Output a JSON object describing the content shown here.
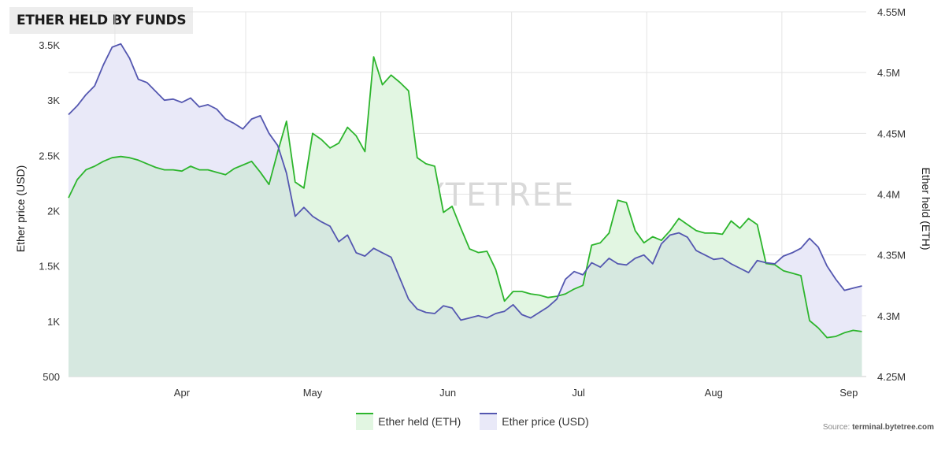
{
  "title": "ETHER HELD BY FUNDS",
  "watermark": "BYTETREE",
  "source": {
    "prefix": "Source: ",
    "site": "terminal.bytetree.com"
  },
  "colors": {
    "held_line": "#2db52d",
    "held_fill": "#e2f6e2",
    "price_line": "#5457b0",
    "price_fill": "#e9e9f8",
    "overlap_fill": "#d6e8e0",
    "grid": "#e4e4e4"
  },
  "chart_data": {
    "type": "line",
    "title": "ETHER HELD BY FUNDS",
    "x": [
      "2022-03-06",
      "2022-03-08",
      "2022-03-10",
      "2022-03-12",
      "2022-03-14",
      "2022-03-16",
      "2022-03-18",
      "2022-03-20",
      "2022-03-22",
      "2022-03-24",
      "2022-03-26",
      "2022-03-28",
      "2022-03-30",
      "2022-04-01",
      "2022-04-03",
      "2022-04-05",
      "2022-04-07",
      "2022-04-09",
      "2022-04-11",
      "2022-04-13",
      "2022-04-15",
      "2022-04-17",
      "2022-04-19",
      "2022-04-21",
      "2022-04-23",
      "2022-04-25",
      "2022-04-27",
      "2022-04-29",
      "2022-05-01",
      "2022-05-03",
      "2022-05-05",
      "2022-05-07",
      "2022-05-09",
      "2022-05-11",
      "2022-05-13",
      "2022-05-15",
      "2022-05-17",
      "2022-05-19",
      "2022-05-21",
      "2022-05-23",
      "2022-05-25",
      "2022-05-27",
      "2022-05-29",
      "2022-05-31",
      "2022-06-02",
      "2022-06-04",
      "2022-06-06",
      "2022-06-08",
      "2022-06-10",
      "2022-06-12",
      "2022-06-14",
      "2022-06-16",
      "2022-06-18",
      "2022-06-20",
      "2022-06-22",
      "2022-06-24",
      "2022-06-26",
      "2022-06-28",
      "2022-06-30",
      "2022-07-02",
      "2022-07-04",
      "2022-07-06",
      "2022-07-08",
      "2022-07-10",
      "2022-07-12",
      "2022-07-14",
      "2022-07-16",
      "2022-07-18",
      "2022-07-20",
      "2022-07-22",
      "2022-07-24",
      "2022-07-26",
      "2022-07-28",
      "2022-07-30",
      "2022-08-01",
      "2022-08-03",
      "2022-08-05",
      "2022-08-07",
      "2022-08-09",
      "2022-08-11",
      "2022-08-13",
      "2022-08-15",
      "2022-08-17",
      "2022-08-19",
      "2022-08-21",
      "2022-08-23",
      "2022-08-25",
      "2022-08-27",
      "2022-08-29",
      "2022-08-31",
      "2022-09-02",
      "2022-09-04"
    ],
    "xticks": [
      "Apr",
      "May",
      "Jun",
      "Jul",
      "Aug",
      "Sep"
    ],
    "series": [
      {
        "name": "Ether held (ETH)",
        "axis": "right",
        "values": [
          4397000,
          4412000,
          4420000,
          4423000,
          4427000,
          4430000,
          4431000,
          4430000,
          4428000,
          4425000,
          4422000,
          4420000,
          4420000,
          4419000,
          4423000,
          4420000,
          4420000,
          4418000,
          4416000,
          4421000,
          4424000,
          4427000,
          4418000,
          4408000,
          4435000,
          4460000,
          4410000,
          4405000,
          4450000,
          4445000,
          4438000,
          4442000,
          4455000,
          4448000,
          4435000,
          4513000,
          4490000,
          4498000,
          4492000,
          4485000,
          4430000,
          4425000,
          4423000,
          4385000,
          4390000,
          4372000,
          4355000,
          4352000,
          4353000,
          4338000,
          4312000,
          4320000,
          4320000,
          4318000,
          4317000,
          4315000,
          4316000,
          4318000,
          4322000,
          4325000,
          4358000,
          4360000,
          4368000,
          4395000,
          4393000,
          4370000,
          4360000,
          4365000,
          4362000,
          4370000,
          4380000,
          4375000,
          4370000,
          4368000,
          4368000,
          4367000,
          4378000,
          4372000,
          4380000,
          4375000,
          4343000,
          4342000,
          4337000,
          4335000,
          4333000,
          4296000,
          4290000,
          4282000,
          4283000,
          4286000,
          4288000,
          4287000
        ]
      },
      {
        "name": "Ether price (USD)",
        "axis": "left",
        "values": [
          2870,
          2950,
          3050,
          3130,
          3320,
          3480,
          3510,
          3380,
          3190,
          3160,
          3080,
          3000,
          3010,
          2980,
          3020,
          2940,
          2960,
          2920,
          2830,
          2790,
          2740,
          2830,
          2860,
          2700,
          2590,
          2340,
          1950,
          2030,
          1950,
          1900,
          1860,
          1720,
          1780,
          1620,
          1590,
          1660,
          1620,
          1580,
          1390,
          1200,
          1110,
          1080,
          1070,
          1140,
          1120,
          1010,
          1030,
          1050,
          1030,
          1070,
          1090,
          1150,
          1060,
          1030,
          1080,
          1130,
          1200,
          1380,
          1450,
          1420,
          1530,
          1490,
          1570,
          1520,
          1510,
          1570,
          1600,
          1520,
          1700,
          1780,
          1800,
          1760,
          1640,
          1600,
          1560,
          1570,
          1520,
          1480,
          1440,
          1550,
          1530,
          1520,
          1590,
          1620,
          1660,
          1750,
          1670,
          1500,
          1380,
          1280,
          1300,
          1320
        ]
      }
    ],
    "y_left": {
      "label": "Ether price (USD)",
      "range": [
        500,
        3800
      ],
      "ticks": [
        "500",
        "1K",
        "1.5K",
        "2K",
        "2.5K",
        "3K",
        "3.5K"
      ]
    },
    "y_right": {
      "label": "Ether held (ETH)",
      "range": [
        4250000,
        4550000
      ],
      "ticks": [
        "4.25M",
        "4.3M",
        "4.35M",
        "4.4M",
        "4.45M",
        "4.5M",
        "4.55M"
      ]
    },
    "grid": true,
    "legend_position": "bottom-center"
  }
}
